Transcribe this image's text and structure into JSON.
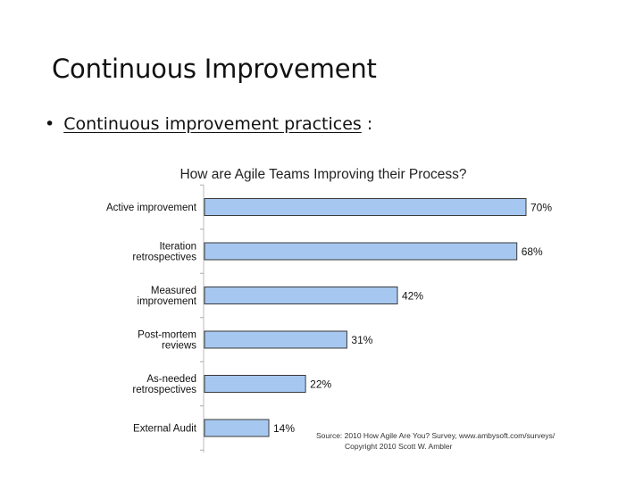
{
  "slide": {
    "title": "Continuous Improvement",
    "bullet": "Continuous improvement practices",
    "bullet_suffix": ":"
  },
  "chart_data": {
    "type": "bar",
    "orientation": "horizontal",
    "title": "How are Agile Teams Improving their Process?",
    "categories": [
      [
        "Active improvement"
      ],
      [
        "Iteration",
        "retrospectives"
      ],
      [
        "Measured",
        "improvement"
      ],
      [
        "Post-mortem",
        "reviews"
      ],
      [
        "As-needed",
        "retrospectives"
      ],
      [
        "External Audit"
      ]
    ],
    "values": [
      70,
      68,
      42,
      31,
      22,
      14
    ],
    "value_labels": [
      "70%",
      "68%",
      "42%",
      "31%",
      "22%",
      "14%"
    ],
    "unit": "%",
    "xlim": [
      0,
      100
    ],
    "bar_color": "#a6c8f0",
    "bar_edge_color": "#3a3a3a",
    "source_lines": [
      "Source: 2010 How Agile Are You? Survey, www.ambysoft.com/surveys/",
      "Copyright 2010 Scott W. Ambler"
    ]
  }
}
